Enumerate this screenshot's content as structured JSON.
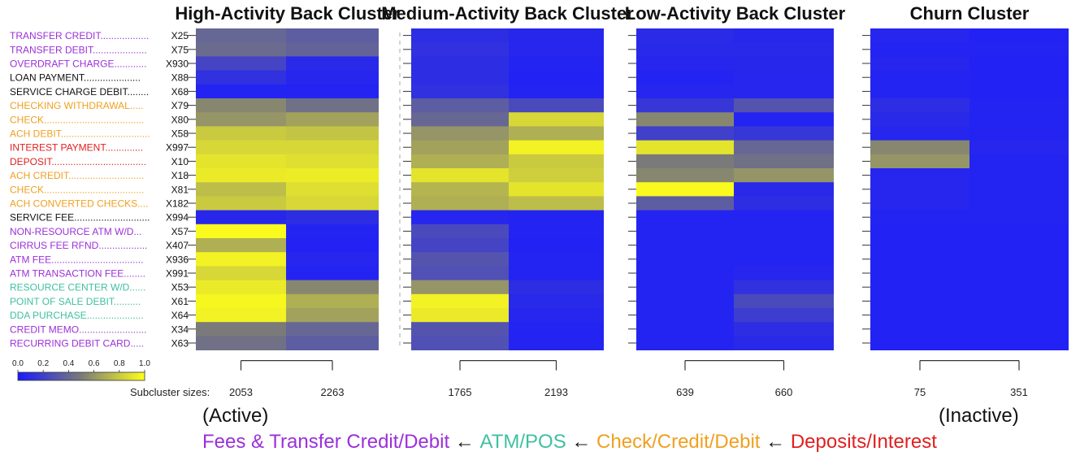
{
  "chart_data": {
    "type": "heatmap",
    "panels": [
      {
        "title": "High-Activity Back Cluster",
        "subcluster_sizes": [
          "2053",
          "2263"
        ]
      },
      {
        "title": "Medium-Activity Back Cluster",
        "subcluster_sizes": [
          "1765",
          "2193"
        ]
      },
      {
        "title": "Low-Activity Back Cluster",
        "subcluster_sizes": [
          "639",
          "660"
        ]
      },
      {
        "title": "Churn Cluster",
        "subcluster_sizes": [
          "75",
          "351"
        ]
      }
    ],
    "rows": [
      {
        "name": "TRANSFER CREDIT..................",
        "code": "X25",
        "group": "fees"
      },
      {
        "name": "TRANSFER DEBIT....................",
        "code": "X75",
        "group": "fees"
      },
      {
        "name": "OVERDRAFT CHARGE............",
        "code": "X930",
        "group": "fees"
      },
      {
        "name": "LOAN PAYMENT.....................",
        "code": "X88",
        "group": "other"
      },
      {
        "name": "SERVICE CHARGE DEBIT........",
        "code": "X68",
        "group": "other"
      },
      {
        "name": "CHECKING WITHDRAWAL.....",
        "code": "X79",
        "group": "check"
      },
      {
        "name": "CHECK.....................................",
        "code": "X80",
        "group": "check"
      },
      {
        "name": "ACH DEBIT.................................",
        "code": "X58",
        "group": "check"
      },
      {
        "name": "INTEREST PAYMENT..............",
        "code": "X997",
        "group": "deposit"
      },
      {
        "name": "DEPOSIT...................................",
        "code": "X10",
        "group": "deposit"
      },
      {
        "name": "ACH CREDIT............................",
        "code": "X18",
        "group": "check"
      },
      {
        "name": "CHECK.....................................",
        "code": "X81",
        "group": "check"
      },
      {
        "name": "ACH CONVERTED CHECKS....",
        "code": "X182",
        "group": "check"
      },
      {
        "name": "SERVICE FEE............................",
        "code": "X994",
        "group": "other"
      },
      {
        "name": "NON-RESOURCE ATM W/D...",
        "code": "X57",
        "group": "fees"
      },
      {
        "name": "CIRRUS FEE RFND..................",
        "code": "X407",
        "group": "fees"
      },
      {
        "name": "ATM FEE..................................",
        "code": "X936",
        "group": "fees"
      },
      {
        "name": "ATM TRANSACTION FEE........",
        "code": "X991",
        "group": "fees"
      },
      {
        "name": "RESOURCE CENTER W/D......",
        "code": "X53",
        "group": "atm"
      },
      {
        "name": "POINT OF SALE DEBIT..........",
        "code": "X61",
        "group": "atm"
      },
      {
        "name": "DDA PURCHASE.....................",
        "code": "X64",
        "group": "atm"
      },
      {
        "name": "CREDIT MEMO.........................",
        "code": "X34",
        "group": "fees"
      },
      {
        "name": "RECURRING DEBIT CARD.....",
        "code": "X63",
        "group": "fees"
      }
    ],
    "group_colors": {
      "fees": "#9b30d9",
      "other": "#111111",
      "check": "#f0a020",
      "deposit": "#e02020",
      "atm": "#40c0a0"
    },
    "values": [
      [
        0.4,
        0.35,
        0.1,
        0.07,
        0.09,
        0.07,
        0.06,
        0.04
      ],
      [
        0.42,
        0.38,
        0.12,
        0.06,
        0.08,
        0.08,
        0.05,
        0.05
      ],
      [
        0.22,
        0.08,
        0.1,
        0.05,
        0.06,
        0.07,
        0.06,
        0.04
      ],
      [
        0.12,
        0.06,
        0.1,
        0.04,
        0.05,
        0.06,
        0.05,
        0.04
      ],
      [
        0.05,
        0.05,
        0.12,
        0.05,
        0.06,
        0.06,
        0.05,
        0.04
      ],
      [
        0.55,
        0.45,
        0.35,
        0.25,
        0.15,
        0.3,
        0.1,
        0.05
      ],
      [
        0.6,
        0.65,
        0.4,
        0.85,
        0.55,
        0.05,
        0.08,
        0.05
      ],
      [
        0.8,
        0.78,
        0.6,
        0.7,
        0.2,
        0.15,
        0.06,
        0.05
      ],
      [
        0.85,
        0.85,
        0.65,
        0.95,
        0.9,
        0.4,
        0.55,
        0.06
      ],
      [
        0.9,
        0.88,
        0.7,
        0.8,
        0.5,
        0.45,
        0.6,
        0.05
      ],
      [
        0.92,
        0.93,
        0.9,
        0.82,
        0.55,
        0.6,
        0.06,
        0.05
      ],
      [
        0.75,
        0.88,
        0.72,
        0.9,
        0.98,
        0.08,
        0.06,
        0.05
      ],
      [
        0.8,
        0.85,
        0.7,
        0.75,
        0.35,
        0.1,
        0.06,
        0.05
      ],
      [
        0.07,
        0.1,
        0.06,
        0.05,
        0.05,
        0.05,
        0.05,
        0.05
      ],
      [
        0.98,
        0.05,
        0.25,
        0.05,
        0.05,
        0.05,
        0.04,
        0.04
      ],
      [
        0.7,
        0.04,
        0.22,
        0.04,
        0.05,
        0.05,
        0.04,
        0.04
      ],
      [
        0.95,
        0.06,
        0.3,
        0.05,
        0.05,
        0.05,
        0.04,
        0.04
      ],
      [
        0.85,
        0.05,
        0.28,
        0.05,
        0.05,
        0.06,
        0.04,
        0.04
      ],
      [
        0.92,
        0.55,
        0.6,
        0.1,
        0.05,
        0.12,
        0.04,
        0.04
      ],
      [
        0.97,
        0.7,
        0.95,
        0.08,
        0.05,
        0.25,
        0.04,
        0.04
      ],
      [
        0.95,
        0.65,
        0.92,
        0.06,
        0.05,
        0.18,
        0.04,
        0.04
      ],
      [
        0.5,
        0.4,
        0.3,
        0.05,
        0.05,
        0.1,
        0.04,
        0.04
      ],
      [
        0.45,
        0.35,
        0.28,
        0.05,
        0.05,
        0.08,
        0.04,
        0.04
      ]
    ],
    "colorbar": {
      "ticks": [
        "0.0",
        "0.2",
        "0.4",
        "0.6",
        "0.8",
        "1.0"
      ],
      "range": [
        0,
        1
      ],
      "low_color": "#1a1aff",
      "mid_color": "#7a7a7a",
      "high_color": "#ffff1a"
    },
    "subcluster_label": "Subcluster sizes:"
  },
  "notes": {
    "active": "(Active)",
    "inactive": "(Inactive)",
    "legend": [
      {
        "text": "Fees & Transfer Credit/Debit",
        "color": "#9b30d9"
      },
      {
        "text": " ← ",
        "color": "#111111"
      },
      {
        "text": "ATM/POS",
        "color": "#40c0a0"
      },
      {
        "text": " ← ",
        "color": "#111111"
      },
      {
        "text": "Check/Credit/Debit",
        "color": "#f0a020"
      },
      {
        "text": " ← ",
        "color": "#111111"
      },
      {
        "text": "Deposits/Interest",
        "color": "#e02020"
      }
    ]
  }
}
